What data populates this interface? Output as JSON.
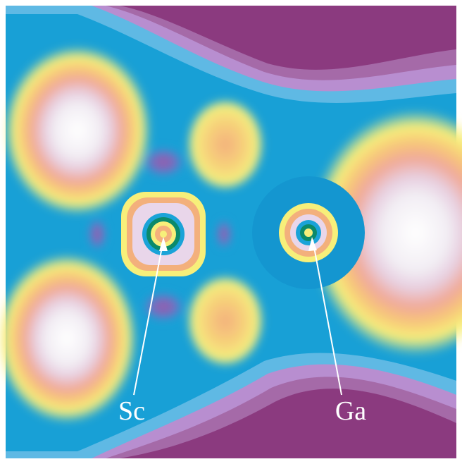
{
  "labels": {
    "sc": "Sc",
    "ga": "Ga"
  }
}
